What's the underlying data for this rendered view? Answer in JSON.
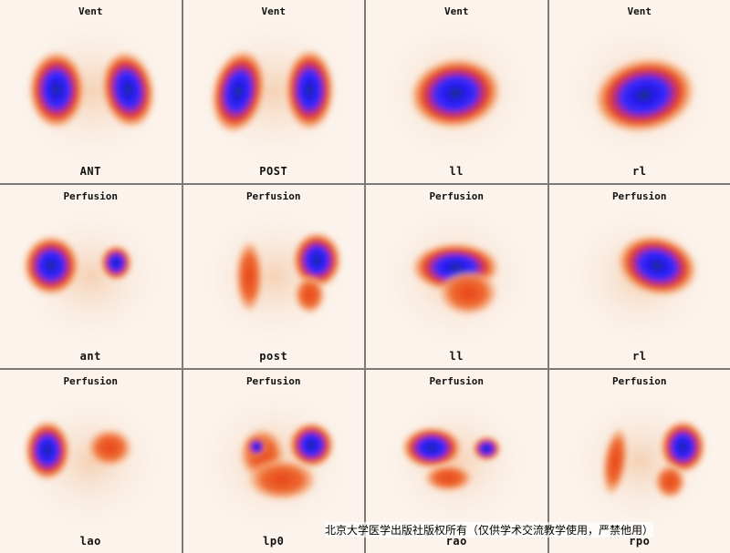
{
  "panels": [
    {
      "title": "Vent",
      "label": "ANT"
    },
    {
      "title": "Vent",
      "label": "POST"
    },
    {
      "title": "Vent",
      "label": "ll"
    },
    {
      "title": "Vent",
      "label": "rl"
    },
    {
      "title": "Perfusion",
      "label": "ant"
    },
    {
      "title": "Perfusion",
      "label": "post"
    },
    {
      "title": "Perfusion",
      "label": "ll"
    },
    {
      "title": "Perfusion",
      "label": "rl"
    },
    {
      "title": "Perfusion",
      "label": "lao"
    },
    {
      "title": "Perfusion",
      "label": "lp0"
    },
    {
      "title": "Perfusion",
      "label": "rao"
    },
    {
      "title": "Perfusion",
      "label": "rpo"
    }
  ],
  "footer": {
    "copyright": "北京大学医学出版社版权所有（仅供学术交流教学使用，严禁他用）"
  },
  "colors": {
    "background": "#fbf3ec",
    "low": "#f3a060",
    "mid": "#e8441c",
    "high": "#2a1cf0",
    "core": "#0a3a70"
  }
}
